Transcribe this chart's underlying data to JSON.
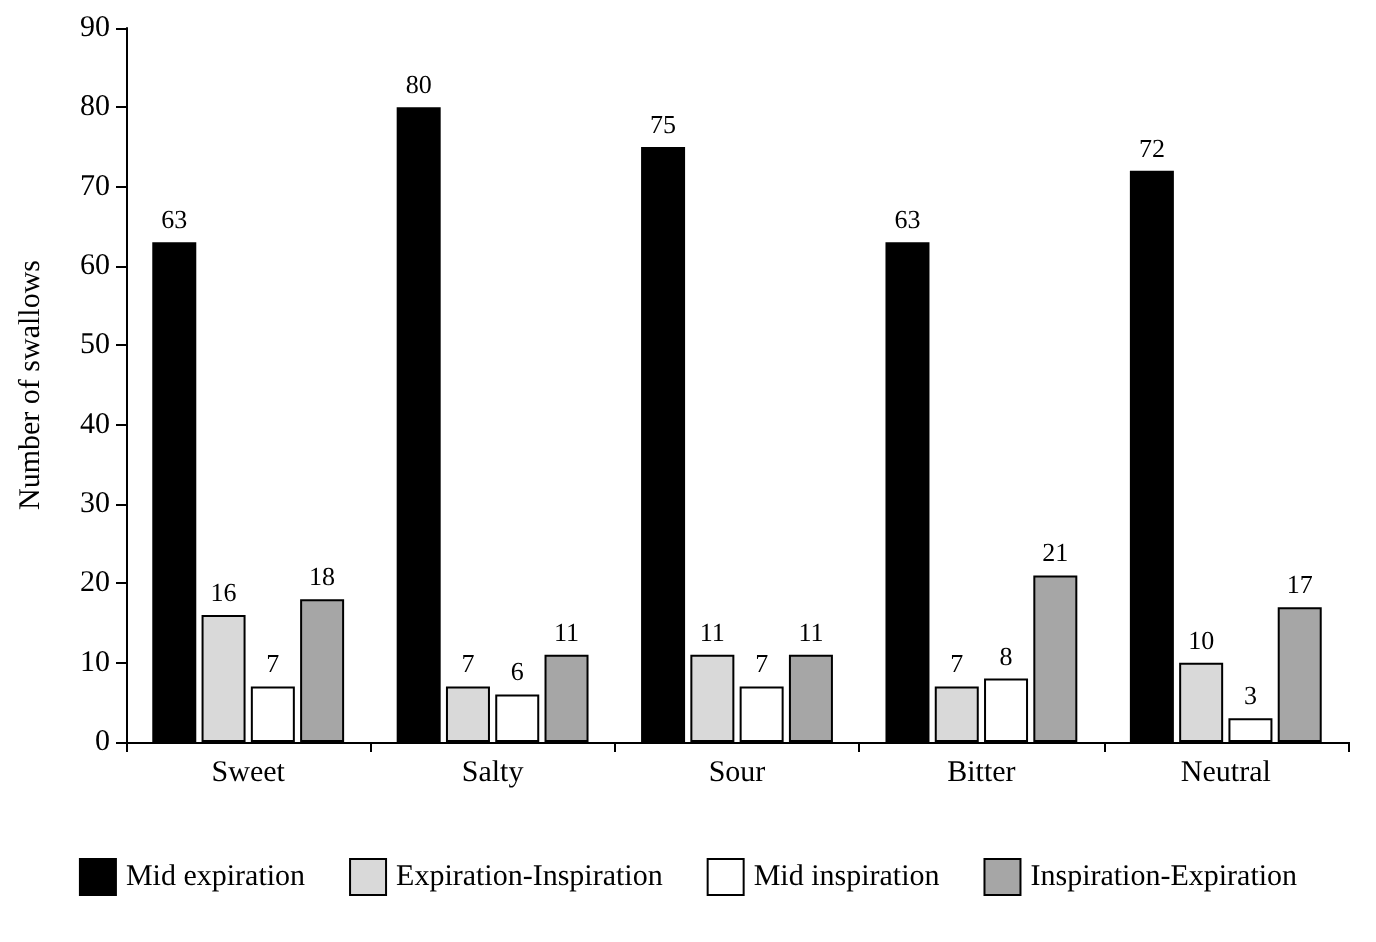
{
  "chart_data": {
    "type": "bar",
    "ylabel": "Number of swallows",
    "categories": [
      "Sweet",
      "Salty",
      "Sour",
      "Bitter",
      "Neutral"
    ],
    "series": [
      {
        "name": "Mid expiration",
        "color": "#000000",
        "values": [
          63,
          80,
          75,
          63,
          72
        ]
      },
      {
        "name": "Expiration-Inspiration",
        "color": "#d9d9d9",
        "values": [
          16,
          7,
          11,
          7,
          10
        ]
      },
      {
        "name": "Mid inspiration",
        "color": "#ffffff",
        "values": [
          7,
          6,
          7,
          8,
          3
        ]
      },
      {
        "name": "Inspiration-Expiration",
        "color": "#a6a6a6",
        "values": [
          18,
          11,
          11,
          21,
          17
        ]
      }
    ],
    "ylim": [
      0,
      90
    ],
    "yticks": [
      0,
      10,
      20,
      30,
      40,
      50,
      60,
      70,
      80,
      90
    ],
    "grid": false,
    "legend": "bottom",
    "data_labels": true
  }
}
